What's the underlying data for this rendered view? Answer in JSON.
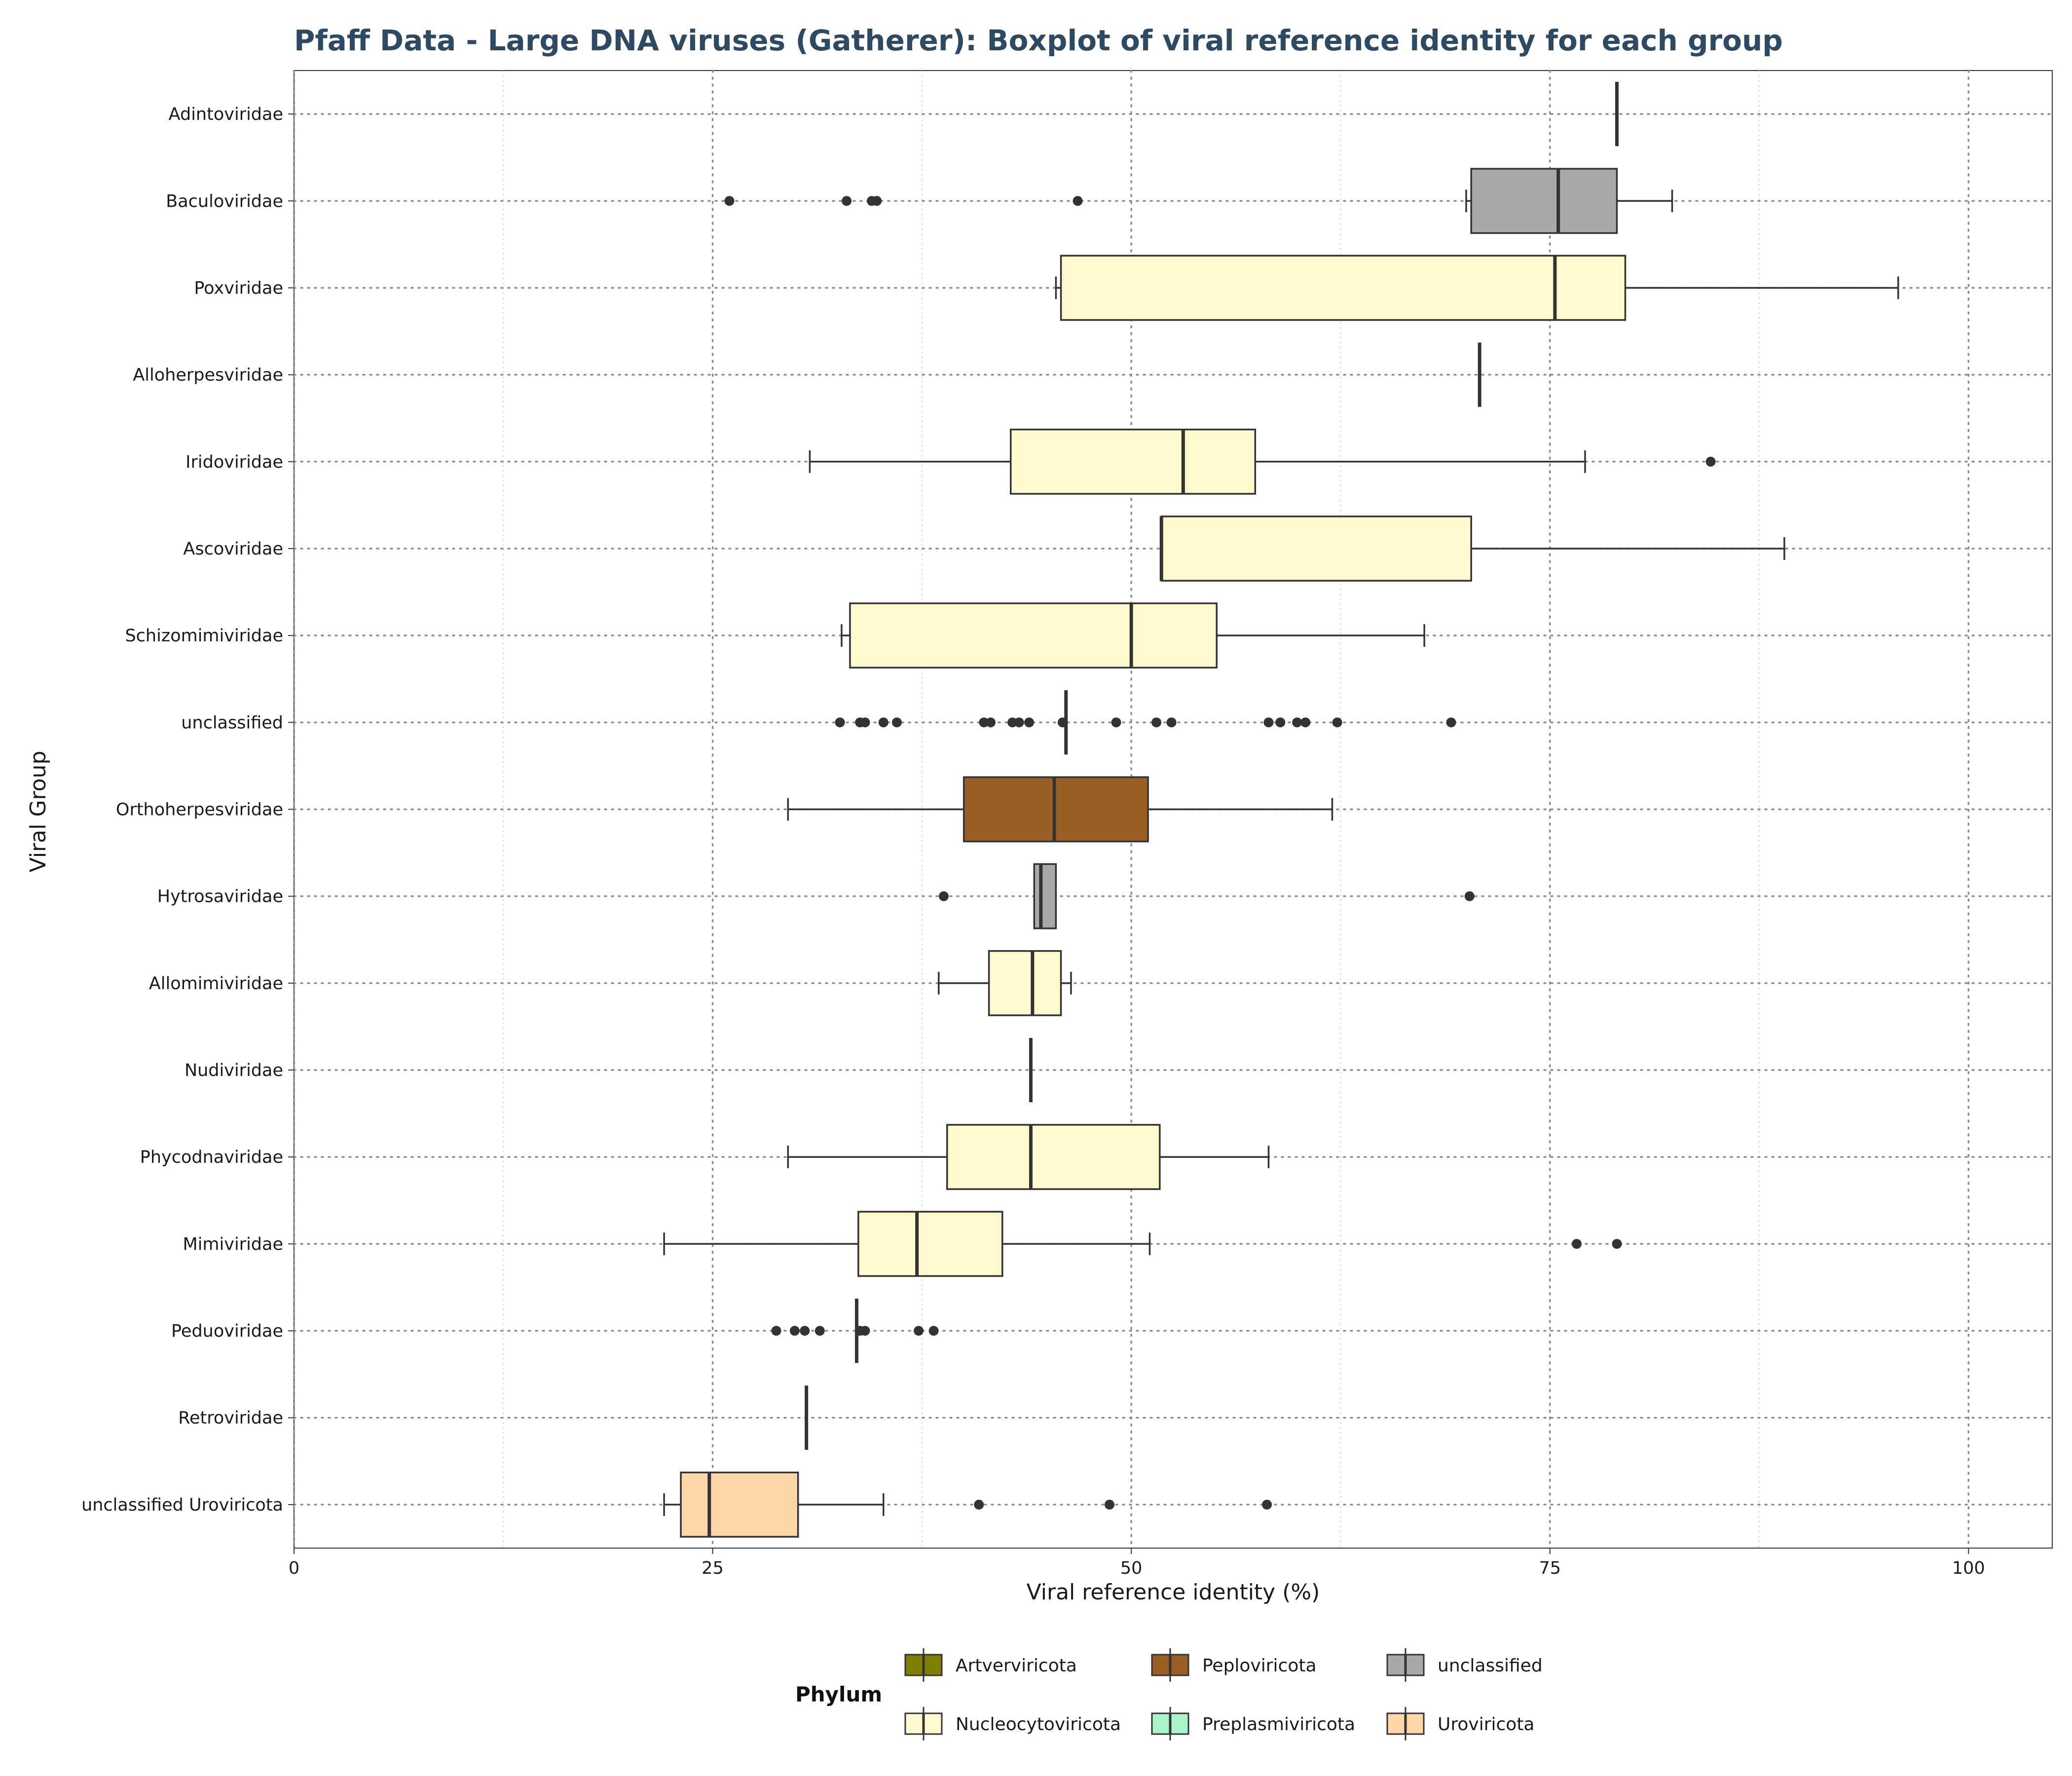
{
  "chart_data": {
    "type": "boxplot",
    "orientation": "horizontal",
    "title": "Pfaff Data - Large DNA viruses (Gatherer): Boxplot of viral reference identity for each group",
    "xlabel": "Viral reference identity (%)",
    "ylabel": "Viral Group",
    "xlim": [
      0,
      105
    ],
    "x_ticks": [
      0,
      25,
      50,
      75,
      100
    ],
    "grid": true,
    "legend": {
      "title": "Phylum",
      "position": "bottom",
      "entries": [
        {
          "label": "Artverviricota",
          "color": "#808000"
        },
        {
          "label": "Peploviricota",
          "color": "#9a5f24"
        },
        {
          "label": "unclassified",
          "color": "#a9a9a9"
        },
        {
          "label": "Nucleocytoviricota",
          "color": "#fffacd"
        },
        {
          "label": "Preplasmiviricota",
          "color": "#aaf5c8"
        },
        {
          "label": "Uroviricota",
          "color": "#ffd6a8"
        }
      ]
    },
    "groups": [
      {
        "label": "Adintoviridae",
        "phylum": "Preplasmiviricota",
        "whisker_low": 79,
        "q1": 79,
        "median": 79,
        "q3": 79,
        "whisker_high": 79,
        "outliers": []
      },
      {
        "label": "Baculoviridae",
        "phylum": "unclassified",
        "whisker_low": 70,
        "q1": 70.3,
        "median": 75.5,
        "q3": 79,
        "whisker_high": 82.3,
        "outliers": [
          26,
          33,
          34.5,
          34.8,
          46.8
        ]
      },
      {
        "label": "Poxviridae",
        "phylum": "Nucleocytoviricota",
        "whisker_low": 45.5,
        "q1": 45.8,
        "median": 75.3,
        "q3": 79.5,
        "whisker_high": 95.8,
        "outliers": []
      },
      {
        "label": "Alloherpesviridae",
        "phylum": "Peploviricota",
        "whisker_low": 70.8,
        "q1": 70.8,
        "median": 70.8,
        "q3": 70.8,
        "whisker_high": 70.8,
        "outliers": []
      },
      {
        "label": "Iridoviridae",
        "phylum": "Nucleocytoviricota",
        "whisker_low": 30.8,
        "q1": 42.8,
        "median": 53.1,
        "q3": 57.4,
        "whisker_high": 77.1,
        "outliers": [
          84.6
        ]
      },
      {
        "label": "Ascoviridae",
        "phylum": "Nucleocytoviricota",
        "whisker_low": 51.8,
        "q1": 51.8,
        "median": 51.8,
        "q3": 70.3,
        "whisker_high": 89,
        "outliers": []
      },
      {
        "label": "Schizomimiviridae",
        "phylum": "Nucleocytoviricota",
        "whisker_low": 32.7,
        "q1": 33.2,
        "median": 50,
        "q3": 55.1,
        "whisker_high": 67.5,
        "outliers": []
      },
      {
        "label": "unclassified",
        "phylum": "unclassified",
        "whisker_low": 46.1,
        "q1": 46.1,
        "median": 46.1,
        "q3": 46.1,
        "whisker_high": 46.1,
        "outliers": [
          32.6,
          33.8,
          34.1,
          35.2,
          36,
          41.2,
          41.6,
          42.9,
          43.3,
          43.9,
          45.9,
          49.1,
          51.5,
          52.4,
          58.2,
          58.9,
          59.9,
          60.4,
          62.3,
          69.1
        ]
      },
      {
        "label": "Orthoherpesviridae",
        "phylum": "Peploviricota",
        "whisker_low": 29.5,
        "q1": 40,
        "median": 45.4,
        "q3": 51,
        "whisker_high": 62,
        "outliers": []
      },
      {
        "label": "Hytrosaviridae",
        "phylum": "unclassified",
        "whisker_low": 44.2,
        "q1": 44.2,
        "median": 44.6,
        "q3": 45.5,
        "whisker_high": 45.5,
        "outliers": [
          38.8,
          70.2
        ]
      },
      {
        "label": "Allomimiviridae",
        "phylum": "Nucleocytoviricota",
        "whisker_low": 38.5,
        "q1": 41.5,
        "median": 44.1,
        "q3": 45.8,
        "whisker_high": 46.4,
        "outliers": []
      },
      {
        "label": "Nudiviridae",
        "phylum": "Artverviricota",
        "whisker_low": 44,
        "q1": 44,
        "median": 44,
        "q3": 44,
        "whisker_high": 44,
        "outliers": []
      },
      {
        "label": "Phycodnaviridae",
        "phylum": "Nucleocytoviricota",
        "whisker_low": 29.5,
        "q1": 39,
        "median": 44,
        "q3": 51.7,
        "whisker_high": 58.2,
        "outliers": []
      },
      {
        "label": "Mimiviridae",
        "phylum": "Nucleocytoviricota",
        "whisker_low": 22.1,
        "q1": 33.7,
        "median": 37.2,
        "q3": 42.3,
        "whisker_high": 51.1,
        "outliers": [
          76.6,
          79
        ]
      },
      {
        "label": "Peduoviridae",
        "phylum": "Uroviricota",
        "whisker_low": 33.6,
        "q1": 33.6,
        "median": 33.6,
        "q3": 33.6,
        "whisker_high": 33.6,
        "outliers": [
          28.8,
          29.9,
          30.5,
          31.4,
          33.8,
          34.1,
          37.3,
          38.2
        ]
      },
      {
        "label": "Retroviridae",
        "phylum": "Artverviricota",
        "whisker_low": 30.6,
        "q1": 30.6,
        "median": 30.6,
        "q3": 30.6,
        "whisker_high": 30.6,
        "outliers": []
      },
      {
        "label": "unclassified Uroviricota",
        "phylum": "Uroviricota",
        "whisker_low": 22.1,
        "q1": 23.1,
        "median": 24.8,
        "q3": 30.1,
        "whisker_high": 35.2,
        "outliers": [
          40.9,
          48.7,
          58.1
        ]
      }
    ]
  }
}
